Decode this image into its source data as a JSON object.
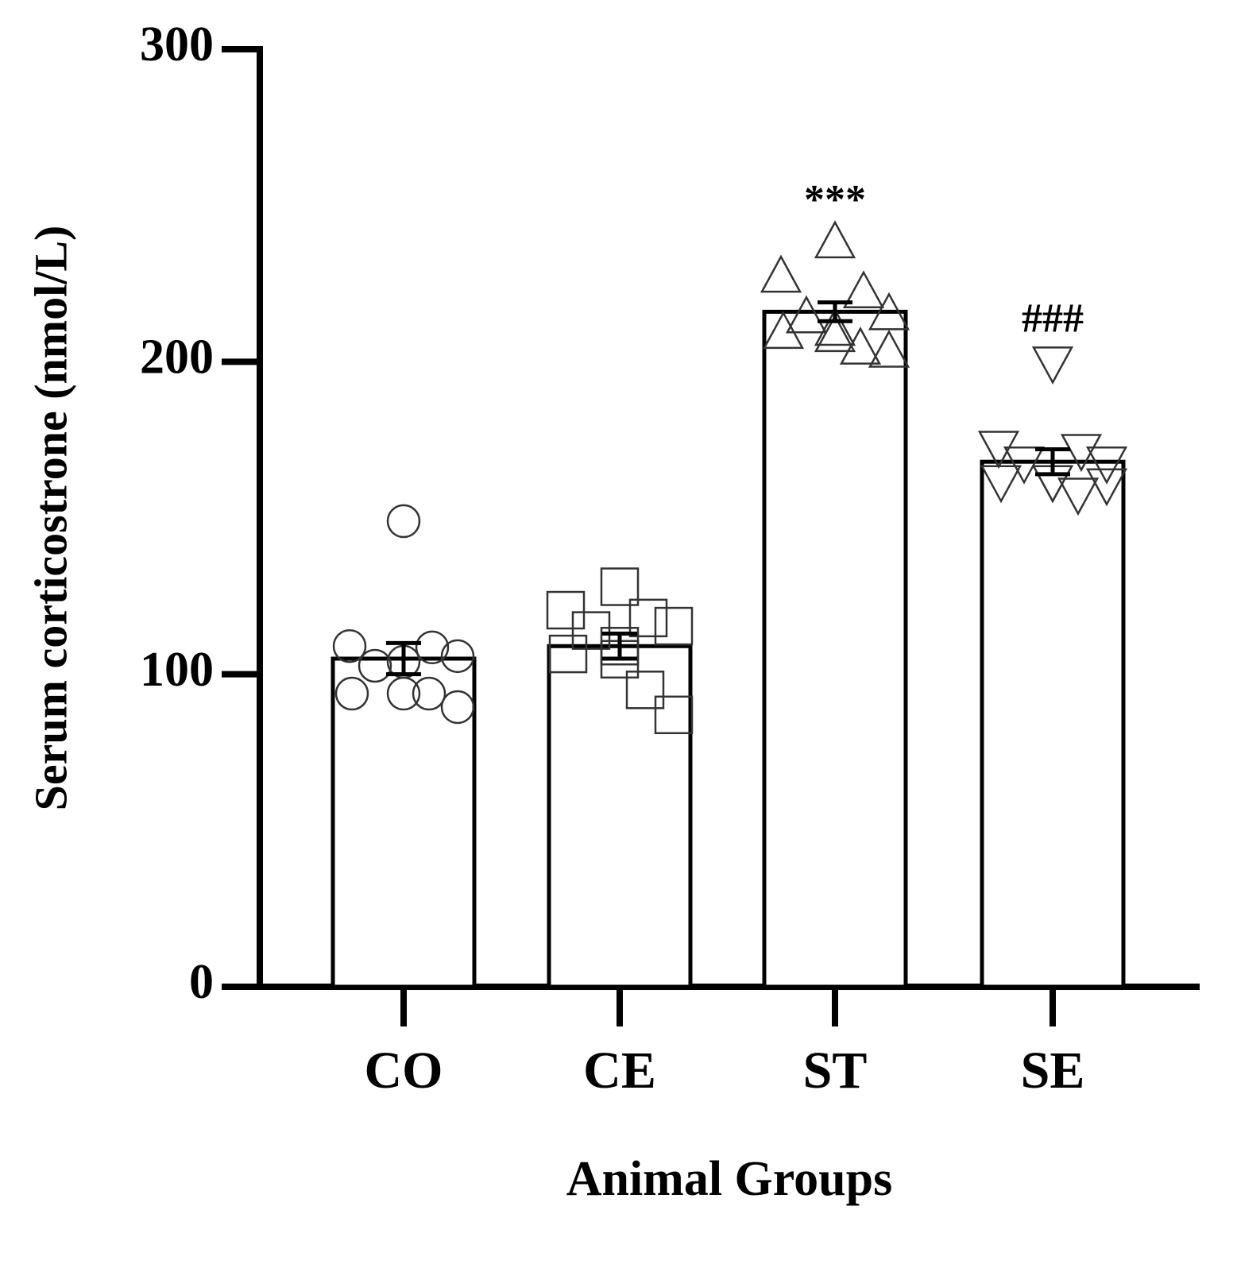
{
  "chart_data": {
    "type": "bar",
    "y_label": "Serum corticostrone (nmol/L)",
    "x_label": "Animal Groups",
    "categories": [
      "CO",
      "CE",
      "ST",
      "SE"
    ],
    "values": [
      105,
      109,
      216,
      168
    ],
    "errors": [
      5,
      4,
      3,
      4
    ],
    "points": [
      [
        149,
        109,
        108.6,
        105.8,
        102.7,
        104,
        93.8,
        93.8,
        93.8,
        89.5
      ],
      [
        128,
        120.5,
        118,
        115.4,
        114,
        109,
        106.5,
        104.8,
        95,
        87
      ],
      [
        238,
        227,
        222,
        215,
        214,
        210,
        209,
        208,
        204,
        203
      ],
      [
        200,
        173,
        172,
        168,
        168,
        162,
        162,
        162,
        158,
        161
      ]
    ],
    "markers": [
      "circle",
      "square",
      "triangle-up",
      "triangle-down"
    ],
    "annotations": [
      null,
      null,
      "***",
      "###"
    ],
    "color": "#ffffff",
    "ylim": [
      0,
      300
    ],
    "yticks": [
      0,
      100,
      200,
      300
    ]
  }
}
